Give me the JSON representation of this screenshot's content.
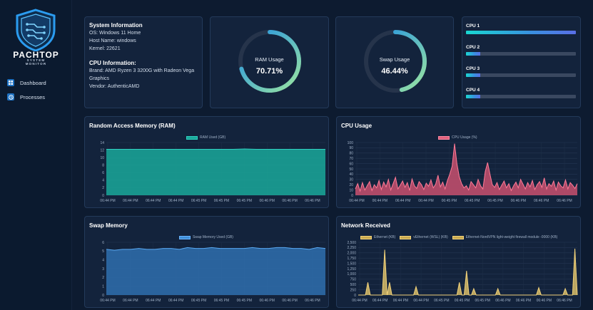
{
  "app": {
    "brand": "PACHTOP",
    "brand_sub_line1": "SYSTEM",
    "brand_sub_line2": "MONITOR"
  },
  "sidebar": {
    "items": [
      {
        "label": "Dashboard",
        "icon": "dashboard-icon"
      },
      {
        "label": "Processes",
        "icon": "processes-icon"
      }
    ]
  },
  "system_info": {
    "title": "System Information",
    "os": "OS: Windows 11 Home",
    "host": "Host Name: windows",
    "kernel": "Kernel: 22621",
    "cpu_title": "CPU Information:",
    "brand_line1": "Brand: AMD Ryzen 3 3200G with Radeon Vega",
    "brand_line2": "Graphics",
    "vendor": "Vendor: AuthenticAMD"
  },
  "ram_gauge": {
    "label": "RAM Usage",
    "value": "70.71%",
    "fraction": 0.7071
  },
  "swap_gauge": {
    "label": "Swap Usage",
    "value": "46.44%",
    "fraction": 0.4644
  },
  "cpu_cores": [
    {
      "label": "CPU 1",
      "fraction": 1.0
    },
    {
      "label": "CPU 2",
      "fraction": 0.13
    },
    {
      "label": "CPU 3",
      "fraction": 0.13
    },
    {
      "label": "CPU 4",
      "fraction": 0.13
    }
  ],
  "colors": {
    "ram": "#1aa89a",
    "cpu": "#e0607c",
    "swap": "#3f8fd8",
    "net": "#f2d27a",
    "gauge_start": "#9be5a0",
    "gauge_end": "#1d8fe6"
  },
  "chart_data": [
    {
      "type": "area",
      "title": "Random Access Memory (RAM)",
      "legend": [
        "RAM Used (GB)"
      ],
      "x_ticks": [
        "06:44 PM",
        "06:44 PM",
        "06:44 PM",
        "06:44 PM",
        "06:45 PM",
        "06:45 PM",
        "06:45 PM",
        "06:46 PM",
        "06:46 PM",
        "06:46 PM"
      ],
      "y_ticks": [
        "0",
        "2",
        "4",
        "6",
        "8",
        "10",
        "12",
        "14"
      ],
      "ylim": [
        0,
        14
      ],
      "series": [
        {
          "name": "RAM Used (GB)",
          "values": [
            12.2,
            12.2,
            12.2,
            12.2,
            12.2,
            12.2,
            12.2,
            12.2,
            12.2,
            12.2,
            12.2,
            12.2,
            12.3,
            12.2,
            12.2,
            12.2,
            12.2,
            12.2,
            12.2,
            12.2
          ]
        }
      ]
    },
    {
      "type": "area",
      "title": "CPU Usage",
      "legend": [
        "CPU Usage (%)"
      ],
      "x_ticks": [
        "06:44 PM",
        "06:44 PM",
        "06:44 PM",
        "06:44 PM",
        "06:45 PM",
        "06:45 PM",
        "06:45 PM",
        "06:46 PM",
        "06:46 PM",
        "06:46 PM"
      ],
      "y_ticks": [
        "0",
        "10",
        "20",
        "30",
        "40",
        "50",
        "60",
        "70",
        "80",
        "90",
        "100"
      ],
      "ylim": [
        0,
        100
      ],
      "series": [
        {
          "name": "CPU Usage (%)",
          "values": [
            12,
            22,
            8,
            24,
            10,
            18,
            26,
            9,
            20,
            14,
            28,
            11,
            25,
            16,
            30,
            10,
            22,
            34,
            12,
            19,
            27,
            15,
            24,
            9,
            31,
            18,
            13,
            26,
            20,
            11,
            23,
            17,
            29,
            14,
            21,
            38,
            16,
            25,
            12,
            28,
            40,
            55,
            98,
            60,
            35,
            22,
            14,
            18,
            10,
            26,
            20,
            14,
            30,
            18,
            12,
            45,
            62,
            40,
            20,
            15,
            24,
            11,
            19,
            27,
            14,
            22,
            9,
            18,
            25,
            14,
            30,
            21,
            12,
            24,
            16,
            28,
            11,
            20,
            26,
            15,
            33,
            12,
            22,
            17,
            27,
            10,
            25,
            18,
            14,
            29,
            12,
            24,
            19,
            13,
            22
          ]
        }
      ]
    },
    {
      "type": "area",
      "title": "Swap Memory",
      "legend": [
        "Swap Memory Used (GB)"
      ],
      "x_ticks": [
        "06:44 PM",
        "06:44 PM",
        "06:44 PM",
        "06:44 PM",
        "06:45 PM",
        "06:45 PM",
        "06:45 PM",
        "06:46 PM",
        "06:46 PM",
        "06:46 PM"
      ],
      "y_ticks": [
        "0",
        "1",
        "2",
        "3",
        "4",
        "5",
        "6"
      ],
      "ylim": [
        0,
        6
      ],
      "series": [
        {
          "name": "Swap Memory Used (GB)",
          "values": [
            5.2,
            5.1,
            5.2,
            5.2,
            5.3,
            5.2,
            5.2,
            5.3,
            5.3,
            5.2,
            5.4,
            5.3,
            5.3,
            5.4,
            5.3,
            5.3,
            5.3,
            5.3,
            5.4,
            5.3,
            5.3,
            5.4,
            5.4,
            5.3,
            5.3,
            5.2,
            5.4,
            5.3
          ]
        }
      ]
    },
    {
      "type": "area",
      "title": "Network Received",
      "legend": [
        "Ethernet (KB)",
        "vEthernet (WSL) (KB)",
        "Ethernet-NordVPN light-weight firewall module -0000 (KB)"
      ],
      "x_ticks": [
        "06:44 PM",
        "06:44 PM",
        "06:44 PM",
        "06:44 PM",
        "06:45 PM",
        "06:45 PM",
        "06:45 PM",
        "06:46 PM",
        "06:46 PM",
        "06:46 PM",
        "06:46 PM"
      ],
      "y_ticks": [
        "0",
        "250",
        "500",
        "750",
        "1,000",
        "1,250",
        "1,500",
        "1,750",
        "2,000",
        "2,250",
        "2,500"
      ],
      "ylim": [
        0,
        2500
      ],
      "series": [
        {
          "name": "Ethernet (KB)",
          "values": [
            0,
            0,
            0,
            0,
            600,
            0,
            0,
            0,
            0,
            0,
            0,
            2150,
            0,
            600,
            0,
            0,
            0,
            0,
            0,
            0,
            0,
            0,
            0,
            0,
            400,
            0,
            0,
            0,
            0,
            0,
            0,
            0,
            0,
            0,
            0,
            0,
            0,
            0,
            0,
            0,
            0,
            0,
            600,
            0,
            0,
            1150,
            0,
            0,
            300,
            0,
            0,
            0,
            0,
            0,
            0,
            0,
            0,
            0,
            300,
            0,
            0,
            0,
            0,
            0,
            0,
            0,
            0,
            0,
            0,
            0,
            0,
            0,
            0,
            0,
            0,
            350,
            0,
            0,
            0,
            0,
            0,
            0,
            0,
            0,
            0,
            0,
            300,
            0,
            0,
            0,
            2200,
            0
          ]
        }
      ]
    }
  ]
}
